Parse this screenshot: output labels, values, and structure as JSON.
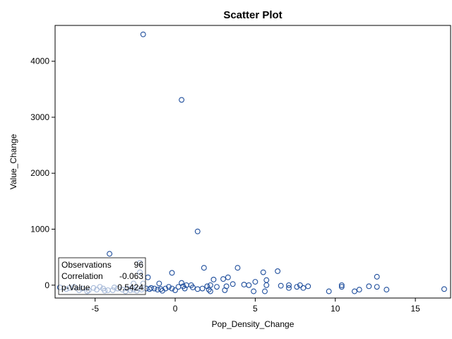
{
  "chart_data": {
    "type": "scatter",
    "title": "Scatter Plot",
    "xlabel": "Pop_Density_Change",
    "ylabel": "Value_Change",
    "xlim": [
      -7.5,
      17.2
    ],
    "ylim": [
      -230,
      4640
    ],
    "xticks": [
      -5,
      0,
      5,
      10,
      15
    ],
    "yticks": [
      0,
      1000,
      2000,
      3000,
      4000
    ],
    "grid": false,
    "marker": "open-circle",
    "marker_color": "#1f4e9c",
    "stats_box": {
      "placement": "bottom-left",
      "rows": [
        {
          "label": "Observations",
          "value": "96"
        },
        {
          "label": "Correlation",
          "value": "-0.063"
        },
        {
          "label": "p-Value",
          "value": "0.5424"
        }
      ]
    },
    "points": [
      {
        "x": -2.0,
        "y": 4480
      },
      {
        "x": 0.4,
        "y": 3310
      },
      {
        "x": 1.4,
        "y": 960
      },
      {
        "x": -4.1,
        "y": 560
      },
      {
        "x": -2.2,
        "y": 400
      },
      {
        "x": 1.8,
        "y": 310
      },
      {
        "x": 3.9,
        "y": 310
      },
      {
        "x": 6.4,
        "y": 250
      },
      {
        "x": -2.2,
        "y": 230
      },
      {
        "x": -0.2,
        "y": 220
      },
      {
        "x": 5.5,
        "y": 230
      },
      {
        "x": 12.6,
        "y": 150
      },
      {
        "x": -1.7,
        "y": 140
      },
      {
        "x": 3.3,
        "y": 140
      },
      {
        "x": 3.0,
        "y": 110
      },
      {
        "x": 2.4,
        "y": 100
      },
      {
        "x": 5.7,
        "y": 90
      },
      {
        "x": 5.0,
        "y": 60
      },
      {
        "x": -2.0,
        "y": 30
      },
      {
        "x": -2.6,
        "y": 30
      },
      {
        "x": -1.0,
        "y": 30
      },
      {
        "x": 0.4,
        "y": 40
      },
      {
        "x": 3.6,
        "y": 20
      },
      {
        "x": 4.3,
        "y": 10
      },
      {
        "x": 4.6,
        "y": 0
      },
      {
        "x": 5.7,
        "y": 0
      },
      {
        "x": 7.1,
        "y": 0
      },
      {
        "x": 7.8,
        "y": 0
      },
      {
        "x": 10.4,
        "y": 0
      },
      {
        "x": 12.1,
        "y": -20
      },
      {
        "x": 6.6,
        "y": -10
      },
      {
        "x": 8.3,
        "y": -20
      },
      {
        "x": 7.6,
        "y": -30
      },
      {
        "x": 7.1,
        "y": -50
      },
      {
        "x": 8.0,
        "y": -50
      },
      {
        "x": 10.4,
        "y": -30
      },
      {
        "x": 12.6,
        "y": -30
      },
      {
        "x": 0.7,
        "y": 0
      },
      {
        "x": 1.0,
        "y": 0
      },
      {
        "x": 0.5,
        "y": -20
      },
      {
        "x": 0.2,
        "y": -30
      },
      {
        "x": 2.0,
        "y": -20
      },
      {
        "x": 2.2,
        "y": 0
      },
      {
        "x": 2.6,
        "y": -30
      },
      {
        "x": 3.2,
        "y": -20
      },
      {
        "x": 1.7,
        "y": -60
      },
      {
        "x": 1.4,
        "y": -70
      },
      {
        "x": 2.1,
        "y": -80
      },
      {
        "x": 3.1,
        "y": -90
      },
      {
        "x": -0.4,
        "y": -30
      },
      {
        "x": -0.6,
        "y": -60
      },
      {
        "x": -0.9,
        "y": -70
      },
      {
        "x": -1.1,
        "y": -80
      },
      {
        "x": -1.3,
        "y": -60
      },
      {
        "x": -1.6,
        "y": -70
      },
      {
        "x": -1.8,
        "y": -60
      },
      {
        "x": -2.1,
        "y": -80
      },
      {
        "x": -2.3,
        "y": -60
      },
      {
        "x": -2.6,
        "y": -80
      },
      {
        "x": -2.8,
        "y": -90
      },
      {
        "x": -3.0,
        "y": -60
      },
      {
        "x": -3.3,
        "y": -80
      },
      {
        "x": -3.6,
        "y": -60
      },
      {
        "x": -3.9,
        "y": -90
      },
      {
        "x": -4.2,
        "y": -90
      },
      {
        "x": -4.5,
        "y": -60
      },
      {
        "x": -4.7,
        "y": -30
      },
      {
        "x": -4.9,
        "y": -80
      },
      {
        "x": -5.4,
        "y": -90
      },
      {
        "x": -5.8,
        "y": -60
      },
      {
        "x": -6.3,
        "y": -30
      },
      {
        "x": -6.6,
        "y": -50
      },
      {
        "x": -7.2,
        "y": -40
      },
      {
        "x": -2.4,
        "y": -100
      },
      {
        "x": -3.1,
        "y": -110
      },
      {
        "x": -4.4,
        "y": -100
      },
      {
        "x": -5.5,
        "y": -110
      },
      {
        "x": -6.0,
        "y": -90
      },
      {
        "x": -0.8,
        "y": -100
      },
      {
        "x": 0.0,
        "y": -90
      },
      {
        "x": 2.2,
        "y": -110
      },
      {
        "x": 4.9,
        "y": -110
      },
      {
        "x": 5.6,
        "y": -110
      },
      {
        "x": 9.6,
        "y": -110
      },
      {
        "x": 11.2,
        "y": -110
      },
      {
        "x": 11.5,
        "y": -80
      },
      {
        "x": 13.2,
        "y": -80
      },
      {
        "x": 16.8,
        "y": -70
      },
      {
        "x": -1.5,
        "y": -50
      },
      {
        "x": -0.2,
        "y": -60
      },
      {
        "x": 0.6,
        "y": -60
      },
      {
        "x": 1.1,
        "y": -40
      },
      {
        "x": -2.7,
        "y": -50
      },
      {
        "x": -3.8,
        "y": -40
      },
      {
        "x": -5.1,
        "y": -50
      },
      {
        "x": -6.8,
        "y": -70
      }
    ]
  }
}
